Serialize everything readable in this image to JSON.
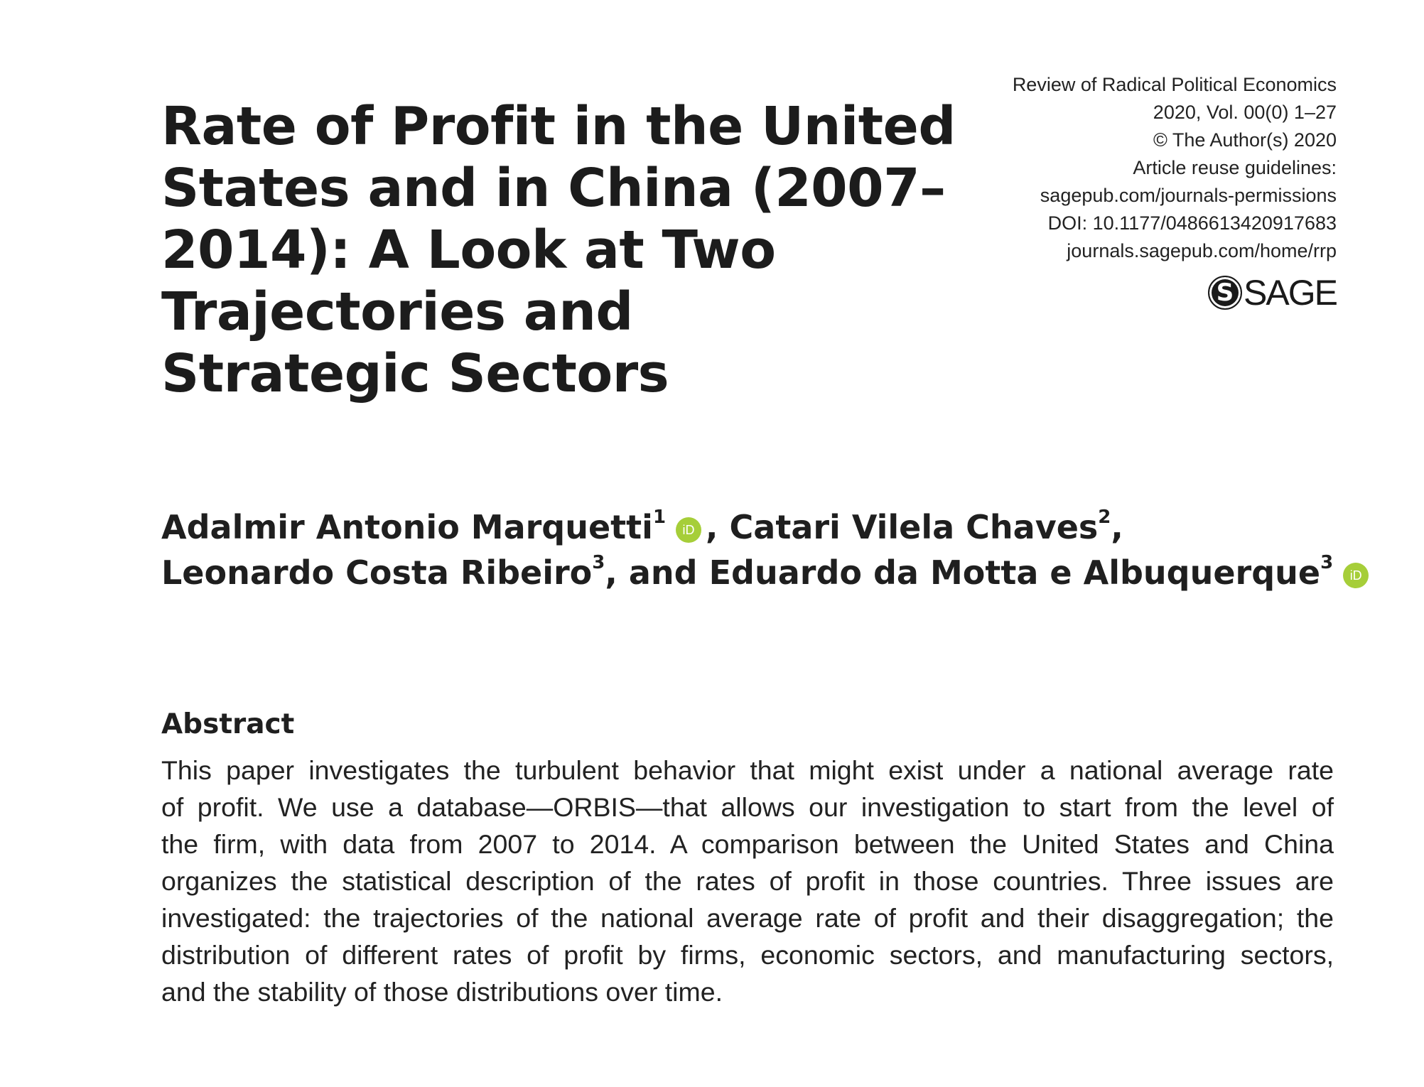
{
  "title_lines": [
    "Rate of Profit in the United",
    "States and in China (2007–",
    "2014): A Look at Two",
    "Trajectories and",
    "Strategic Sectors"
  ],
  "journal_info": {
    "journal_name": "Review of Radical Political Economics",
    "volume": "2020, Vol. 00(0) 1–27",
    "copyright": "© The Author(s) 2020",
    "reuse_label": "Article reuse guidelines:",
    "reuse_link": "sagepub.com/journals-permissions",
    "doi": "DOI: 10.1177/0486613420917683",
    "journal_url": "journals.sagepub.com/home/rrp"
  },
  "publisher_logo": {
    "mark": "S",
    "word": "SAGE"
  },
  "authors": {
    "a1_name": "Adalmir Antonio Marquetti",
    "a1_sup": "1",
    "sep1": ", ",
    "a2_name": "Catari Vilela Chaves",
    "a2_sup": "2",
    "sep2": ",",
    "a3_name": "Leonardo Costa Ribeiro",
    "a3_sup": "3",
    "sep3": ", and ",
    "a4_name": "Eduardo da Motta e Albuquerque",
    "a4_sup": "3",
    "orcid_label": "iD"
  },
  "abstract": {
    "heading": "Abstract",
    "lines": [
      "This paper investigates the turbulent behavior that might exist under a national average rate",
      "of profit. We use a database—ORBIS—that allows our investigation to start from the level of",
      "the firm, with data from 2007 to 2014. A comparison between the United States and China",
      "organizes the statistical description of the rates of profit in those countries. Three issues are",
      "investigated: the trajectories of the national average rate of profit and their disaggregation; the",
      "distribution of different rates of profit by firms, economic sectors, and manufacturing sectors,",
      "and the stability of those distributions over time."
    ]
  },
  "colors": {
    "orcid_green": "#a6ce39",
    "text": "#1f1f1f",
    "background": "#ffffff"
  }
}
